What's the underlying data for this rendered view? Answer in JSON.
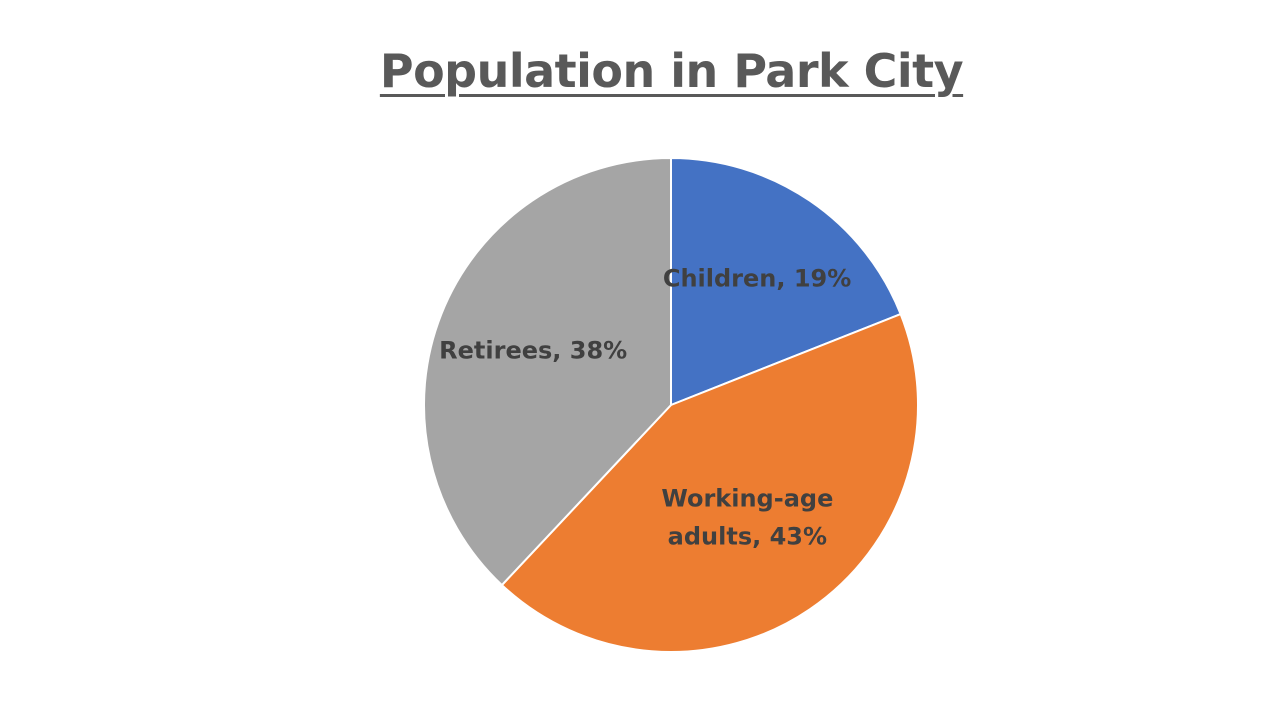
{
  "chart_data": {
    "type": "pie",
    "title": "Population in Park City",
    "slices": [
      {
        "label": "Children",
        "value": 19,
        "display": "Children, 19%",
        "color": "#4472C4"
      },
      {
        "label": "Working-age adults",
        "value": 43,
        "display_lines": [
          "Working-age",
          "adults, 43%"
        ],
        "color": "#ED7D31"
      },
      {
        "label": "Retirees",
        "value": 38,
        "display": "Retirees, 38%",
        "color": "#A5A5A5"
      }
    ],
    "start_angle_deg": 0,
    "direction": "clockwise",
    "legend": "none"
  }
}
